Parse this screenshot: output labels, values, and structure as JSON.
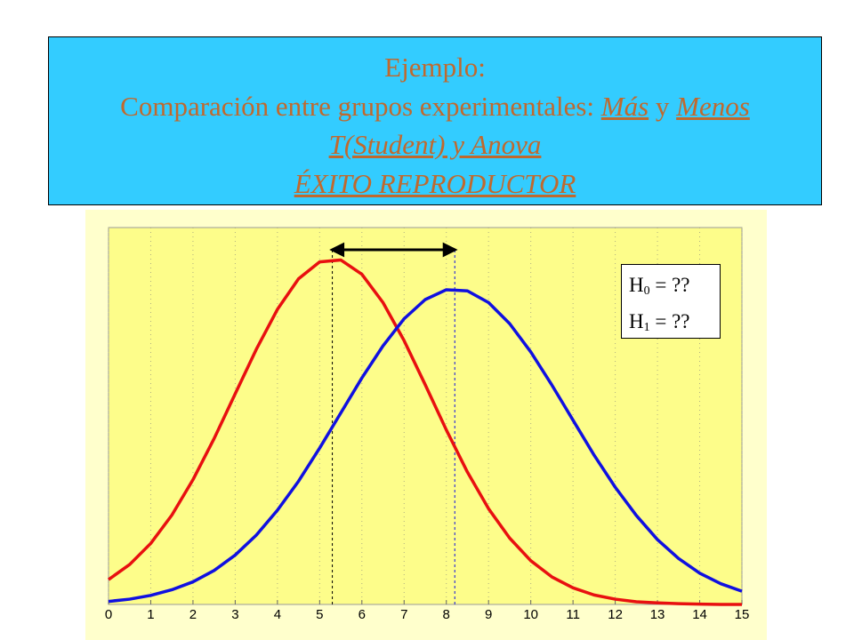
{
  "slide": {
    "title_lines": [
      [
        "Ejemplo:"
      ],
      [
        "Comparación entre grupos experimentales: ",
        "Más",
        " y ",
        "Menos"
      ],
      [
        "T(Student) y Anova"
      ],
      [
        "ÉXITO REPRODUCTOR"
      ]
    ],
    "emphasis": [
      [
        false
      ],
      [
        false,
        true,
        false,
        true
      ],
      [
        true
      ],
      [
        true
      ]
    ]
  },
  "chart_data": {
    "type": "line",
    "x": [
      0,
      0.5,
      1,
      1.5,
      2,
      2.5,
      3,
      3.5,
      4,
      4.5,
      5,
      5.5,
      6,
      6.5,
      7,
      7.5,
      8,
      8.5,
      9,
      9.5,
      10,
      10.5,
      11,
      11.5,
      12,
      12.5,
      13,
      13.5,
      14,
      14.5,
      15
    ],
    "series": [
      {
        "color": "#e81010",
        "mean": 5.3,
        "mean_color": "#000000",
        "values": [
          0.066,
          0.106,
          0.162,
          0.237,
          0.331,
          0.44,
          0.559,
          0.677,
          0.783,
          0.864,
          0.909,
          0.914,
          0.876,
          0.801,
          0.7,
          0.583,
          0.463,
          0.351,
          0.254,
          0.176,
          0.116,
          0.073,
          0.044,
          0.025,
          0.014,
          0.007,
          0.004,
          0.002,
          0.001,
          0,
          0
        ]
      },
      {
        "color": "#1010e0",
        "mean": 8.2,
        "mean_color": "#1010e0",
        "values": [
          0.008,
          0.014,
          0.024,
          0.039,
          0.06,
          0.09,
          0.131,
          0.184,
          0.25,
          0.327,
          0.415,
          0.508,
          0.601,
          0.686,
          0.758,
          0.809,
          0.835,
          0.832,
          0.801,
          0.745,
          0.67,
          0.582,
          0.489,
          0.396,
          0.311,
          0.236,
          0.172,
          0.122,
          0.083,
          0.055,
          0.035
        ]
      }
    ],
    "xlim": [
      0,
      15
    ],
    "xticks": [
      0,
      1,
      2,
      3,
      4,
      5,
      6,
      7,
      8,
      9,
      10,
      11,
      12,
      13,
      14,
      15
    ],
    "ylim": [
      0,
      1
    ],
    "grid": true,
    "annotation": {
      "lines": [
        [
          "H",
          "0",
          " = ??"
        ],
        [
          "H",
          "1",
          " = ??"
        ]
      ]
    }
  }
}
